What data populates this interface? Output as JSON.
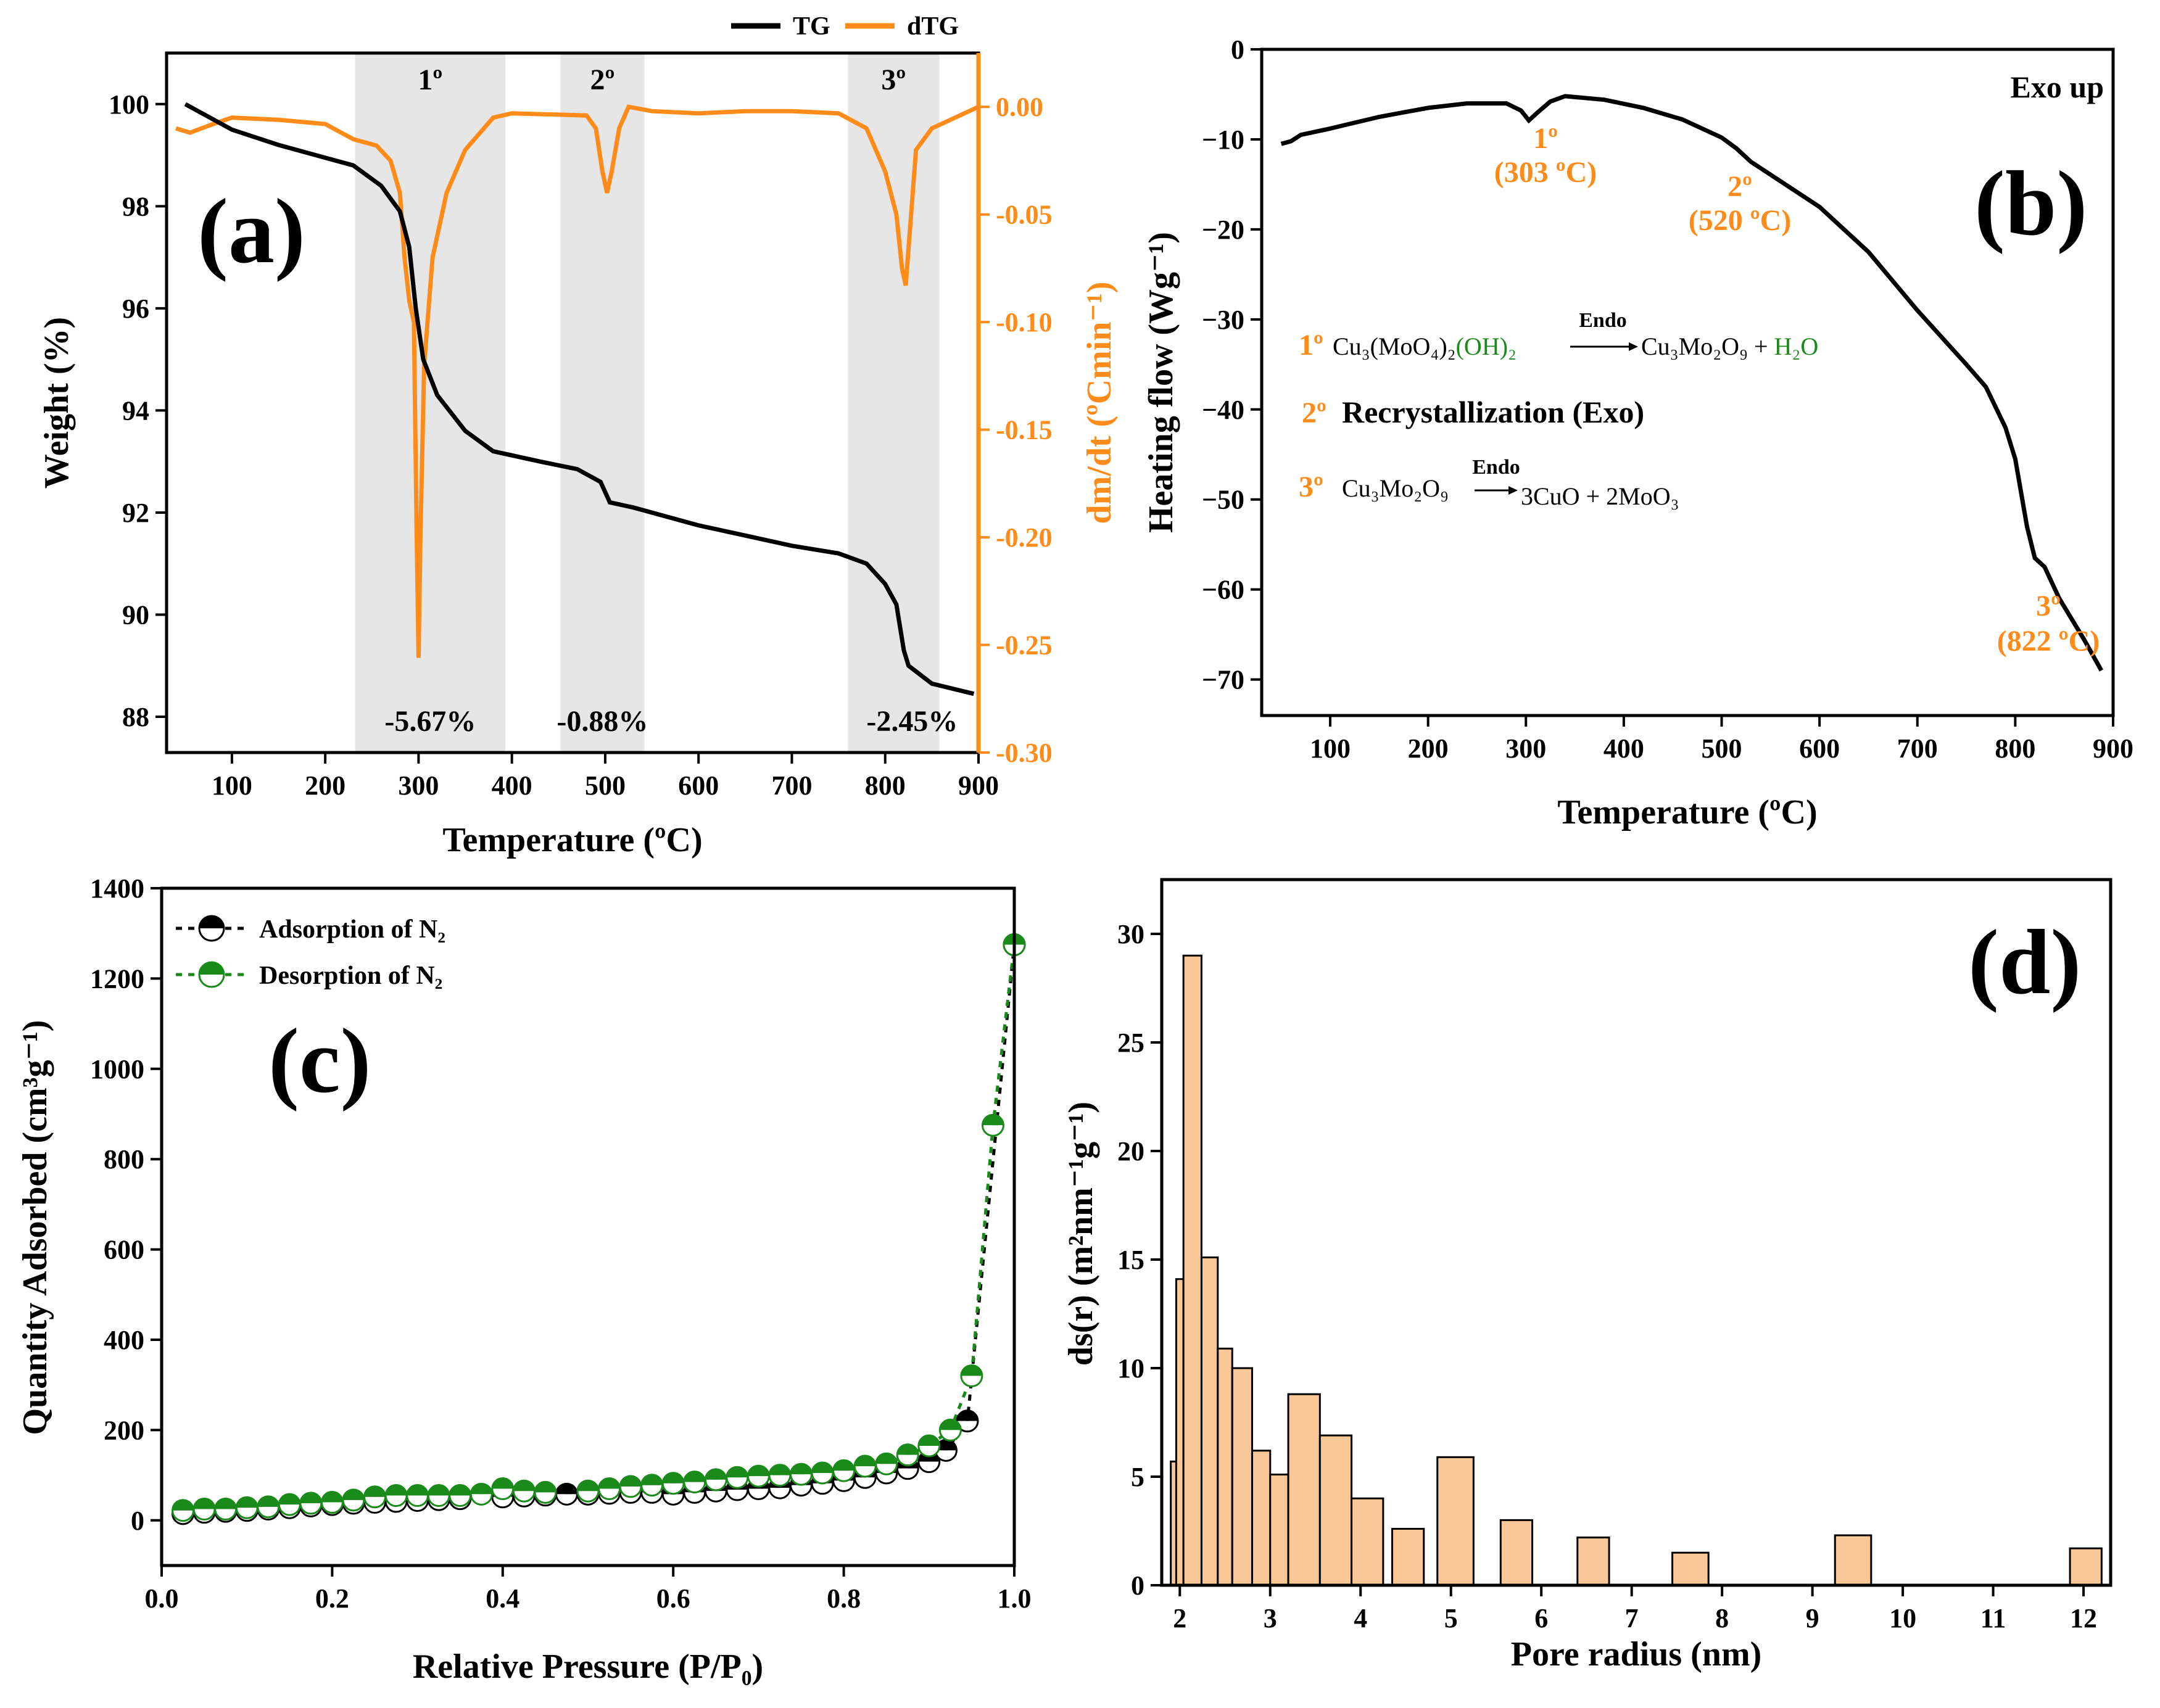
{
  "colors": {
    "tg": "#000000",
    "dtg": "#ff8c1a",
    "shade": "#e6e6e6",
    "adsorption": "#000000",
    "desorption": "#1a8a1a",
    "bar_fill": "#f9c896",
    "green": "#1a8a1a"
  },
  "chart_data": [
    {
      "panel_id": "(a)",
      "type": "line",
      "legend": [
        "TG",
        "dTG"
      ],
      "xlabel": "Temperature (ºC)",
      "ylabel": "Weight (%)",
      "ylabel_right": "dm/dt (ºCmin⁻¹)",
      "xlim": [
        30,
        900
      ],
      "ylim": [
        87.3,
        101
      ],
      "yright_lim": [
        -0.3,
        0.025
      ],
      "xticks": [
        "100",
        "200",
        "300",
        "400",
        "500",
        "600",
        "700",
        "800",
        "900"
      ],
      "yticks": [
        "88",
        "90",
        "92",
        "94",
        "96",
        "98",
        "100"
      ],
      "yright_ticks": [
        "0.00",
        "-0.05",
        "-0.10",
        "-0.15",
        "-0.20",
        "-0.25",
        "-0.30"
      ],
      "regions": [
        {
          "label": "1º",
          "from": 232,
          "to": 393,
          "loss": "-5.67%"
        },
        {
          "label": "2º",
          "from": 452,
          "to": 542,
          "loss": "-0.88%"
        },
        {
          "label": "3º",
          "from": 760,
          "to": 858,
          "loss": "-2.45%"
        }
      ],
      "series": [
        {
          "name": "TG",
          "axis": "left",
          "points": [
            [
              50,
              100
            ],
            [
              100,
              99.5
            ],
            [
              150,
              99.2
            ],
            [
              200,
              98.95
            ],
            [
              230,
              98.8
            ],
            [
              260,
              98.4
            ],
            [
              280,
              97.9
            ],
            [
              290,
              97.2
            ],
            [
              297,
              96.0
            ],
            [
              305,
              95.0
            ],
            [
              320,
              94.3
            ],
            [
              350,
              93.6
            ],
            [
              380,
              93.2
            ],
            [
              430,
              93.0
            ],
            [
              470,
              92.85
            ],
            [
              495,
              92.6
            ],
            [
              505,
              92.2
            ],
            [
              530,
              92.1
            ],
            [
              600,
              91.75
            ],
            [
              650,
              91.55
            ],
            [
              700,
              91.35
            ],
            [
              750,
              91.2
            ],
            [
              780,
              91.0
            ],
            [
              800,
              90.6
            ],
            [
              812,
              90.2
            ],
            [
              820,
              89.3
            ],
            [
              825,
              89.0
            ],
            [
              850,
              88.65
            ],
            [
              895,
              88.45
            ]
          ]
        },
        {
          "name": "dTG",
          "axis": "right",
          "points": [
            [
              40,
              -0.01
            ],
            [
              55,
              -0.012
            ],
            [
              80,
              -0.008
            ],
            [
              100,
              -0.005
            ],
            [
              150,
              -0.006
            ],
            [
              200,
              -0.008
            ],
            [
              230,
              -0.015
            ],
            [
              255,
              -0.018
            ],
            [
              270,
              -0.025
            ],
            [
              280,
              -0.04
            ],
            [
              285,
              -0.07
            ],
            [
              290,
              -0.09
            ],
            [
              295,
              -0.1
            ],
            [
              298,
              -0.2
            ],
            [
              300,
              -0.256
            ],
            [
              302,
              -0.2
            ],
            [
              306,
              -0.12
            ],
            [
              315,
              -0.07
            ],
            [
              330,
              -0.04
            ],
            [
              350,
              -0.02
            ],
            [
              380,
              -0.005
            ],
            [
              400,
              -0.003
            ],
            [
              480,
              -0.004
            ],
            [
              490,
              -0.01
            ],
            [
              497,
              -0.03
            ],
            [
              502,
              -0.04
            ],
            [
              507,
              -0.03
            ],
            [
              515,
              -0.01
            ],
            [
              525,
              0.0
            ],
            [
              550,
              -0.002
            ],
            [
              600,
              -0.003
            ],
            [
              650,
              -0.002
            ],
            [
              700,
              -0.002
            ],
            [
              750,
              -0.003
            ],
            [
              780,
              -0.01
            ],
            [
              800,
              -0.03
            ],
            [
              812,
              -0.05
            ],
            [
              818,
              -0.075
            ],
            [
              822,
              -0.083
            ],
            [
              826,
              -0.06
            ],
            [
              833,
              -0.02
            ],
            [
              850,
              -0.01
            ],
            [
              900,
              0.0
            ]
          ]
        }
      ]
    },
    {
      "panel_id": "(b)",
      "type": "line",
      "xlabel": "Temperature (ºC)",
      "ylabel": "Heating flow (Wg⁻¹)",
      "xlim": [
        30,
        900
      ],
      "ylim": [
        -74,
        0
      ],
      "xticks": [
        "100",
        "200",
        "300",
        "400",
        "500",
        "600",
        "700",
        "800",
        "900"
      ],
      "yticks": [
        "0",
        "-10",
        "-20",
        "-30",
        "-40",
        "-50",
        "-60",
        "-70"
      ],
      "corner_label": "Exo up",
      "peaks": [
        {
          "label": "1º",
          "value": "(303 ºC)",
          "x": 303
        },
        {
          "label": "2º",
          "value": "(520 ºC)",
          "x": 520
        },
        {
          "label": "3º",
          "value": "(822 ºC)",
          "x": 822
        }
      ],
      "reactions": {
        "r1": {
          "num": "1º",
          "reactant": "Cu₃(MoO₄)₂",
          "reactant_green": "(OH)₂",
          "arrow": "Endo",
          "product": "Cu₃Mo₂O₉ + ",
          "product_green": "H₂O"
        },
        "r2": {
          "num": "2º",
          "text": "Recrystallization (Exo)"
        },
        "r3": {
          "num": "3º",
          "reactant": "Cu₃Mo₂O₉",
          "arrow": "Endo",
          "product": "3CuO + 2MoO₃"
        }
      },
      "series": [
        {
          "name": "Heating flow",
          "points": [
            [
              50,
              -10.5
            ],
            [
              60,
              -10.2
            ],
            [
              70,
              -9.5
            ],
            [
              100,
              -8.8
            ],
            [
              150,
              -7.5
            ],
            [
              200,
              -6.5
            ],
            [
              240,
              -6.0
            ],
            [
              280,
              -6.0
            ],
            [
              295,
              -6.8
            ],
            [
              303,
              -7.9
            ],
            [
              312,
              -7.0
            ],
            [
              325,
              -5.8
            ],
            [
              340,
              -5.2
            ],
            [
              380,
              -5.6
            ],
            [
              420,
              -6.5
            ],
            [
              460,
              -7.8
            ],
            [
              500,
              -9.8
            ],
            [
              515,
              -11.0
            ],
            [
              530,
              -12.5
            ],
            [
              600,
              -17.5
            ],
            [
              650,
              -22.5
            ],
            [
              700,
              -29.0
            ],
            [
              750,
              -35.0
            ],
            [
              770,
              -37.5
            ],
            [
              790,
              -42.0
            ],
            [
              800,
              -45.5
            ],
            [
              812,
              -53.0
            ],
            [
              820,
              -56.5
            ],
            [
              830,
              -57.5
            ],
            [
              845,
              -61.0
            ],
            [
              870,
              -65.5
            ],
            [
              888,
              -69.0
            ]
          ]
        }
      ]
    },
    {
      "panel_id": "(c)",
      "type": "scatter",
      "xlabel": "Relative Pressure (P/P₀)",
      "ylabel": "Quantity Adsorbed (cm³g⁻¹)",
      "xlim": [
        0,
        1.0
      ],
      "ylim": [
        -100,
        1400
      ],
      "xticks": [
        "0.0",
        "0.2",
        "0.4",
        "0.6",
        "0.8",
        "1.0"
      ],
      "yticks": [
        "0",
        "200",
        "400",
        "600",
        "800",
        "1000",
        "1200",
        "1400"
      ],
      "series": [
        {
          "name": "Adsorption of N₂",
          "points": [
            [
              0.025,
              15
            ],
            [
              0.05,
              18
            ],
            [
              0.075,
              20
            ],
            [
              0.1,
              22
            ],
            [
              0.125,
              25
            ],
            [
              0.15,
              28
            ],
            [
              0.175,
              32
            ],
            [
              0.2,
              35
            ],
            [
              0.225,
              38
            ],
            [
              0.25,
              40
            ],
            [
              0.275,
              42
            ],
            [
              0.3,
              44
            ],
            [
              0.325,
              46
            ],
            [
              0.35,
              48
            ],
            [
              0.4,
              52
            ],
            [
              0.425,
              54
            ],
            [
              0.45,
              56
            ],
            [
              0.475,
              58
            ],
            [
              0.5,
              58
            ],
            [
              0.525,
              60
            ],
            [
              0.55,
              62
            ],
            [
              0.575,
              62
            ],
            [
              0.6,
              58
            ],
            [
              0.625,
              62
            ],
            [
              0.65,
              65
            ],
            [
              0.675,
              68
            ],
            [
              0.7,
              70
            ],
            [
              0.725,
              72
            ],
            [
              0.75,
              78
            ],
            [
              0.775,
              82
            ],
            [
              0.8,
              88
            ],
            [
              0.825,
              95
            ],
            [
              0.85,
              105
            ],
            [
              0.875,
              115
            ],
            [
              0.9,
              130
            ],
            [
              0.92,
              155
            ],
            [
              0.945,
              220
            ],
            [
              1.0,
              1275
            ]
          ]
        },
        {
          "name": "Desorption of N₂",
          "points": [
            [
              0.025,
              22
            ],
            [
              0.05,
              25
            ],
            [
              0.075,
              25
            ],
            [
              0.1,
              28
            ],
            [
              0.125,
              30
            ],
            [
              0.15,
              35
            ],
            [
              0.175,
              38
            ],
            [
              0.2,
              40
            ],
            [
              0.225,
              45
            ],
            [
              0.25,
              52
            ],
            [
              0.275,
              55
            ],
            [
              0.3,
              55
            ],
            [
              0.325,
              55
            ],
            [
              0.35,
              55
            ],
            [
              0.375,
              58
            ],
            [
              0.4,
              70
            ],
            [
              0.425,
              65
            ],
            [
              0.45,
              62
            ],
            [
              0.5,
              65
            ],
            [
              0.525,
              70
            ],
            [
              0.55,
              75
            ],
            [
              0.575,
              78
            ],
            [
              0.6,
              82
            ],
            [
              0.625,
              85
            ],
            [
              0.65,
              90
            ],
            [
              0.675,
              95
            ],
            [
              0.7,
              98
            ],
            [
              0.725,
              100
            ],
            [
              0.75,
              102
            ],
            [
              0.775,
              105
            ],
            [
              0.8,
              110
            ],
            [
              0.825,
              120
            ],
            [
              0.85,
              125
            ],
            [
              0.875,
              145
            ],
            [
              0.9,
              165
            ],
            [
              0.925,
              200
            ],
            [
              0.95,
              320
            ],
            [
              0.975,
              875
            ],
            [
              1.0,
              1275
            ]
          ]
        }
      ]
    },
    {
      "panel_id": "(d)",
      "type": "bar",
      "xlabel": "Pore radius (nm)",
      "ylabel": "ds(r) (m²nm⁻¹g⁻¹)",
      "xlim": [
        1.8,
        12.3
      ],
      "ylim": [
        0,
        32.5
      ],
      "xticks": [
        "2",
        "3",
        "4",
        "5",
        "6",
        "7",
        "8",
        "9",
        "10",
        "11",
        "12"
      ],
      "yticks": [
        "0",
        "5",
        "10",
        "15",
        "20",
        "25",
        "30"
      ],
      "bars": [
        {
          "x0": 1.9,
          "x1": 1.96,
          "value": 5.7
        },
        {
          "x0": 1.96,
          "x1": 2.04,
          "value": 14.1
        },
        {
          "x0": 2.04,
          "x1": 2.24,
          "value": 29.0
        },
        {
          "x0": 2.24,
          "x1": 2.42,
          "value": 15.1
        },
        {
          "x0": 2.42,
          "x1": 2.58,
          "value": 10.9
        },
        {
          "x0": 2.58,
          "x1": 2.8,
          "value": 10.0
        },
        {
          "x0": 2.8,
          "x1": 3.0,
          "value": 6.2
        },
        {
          "x0": 3.0,
          "x1": 3.2,
          "value": 5.1
        },
        {
          "x0": 3.2,
          "x1": 3.55,
          "value": 8.8
        },
        {
          "x0": 3.55,
          "x1": 3.9,
          "value": 6.9
        },
        {
          "x0": 3.9,
          "x1": 4.25,
          "value": 4.0
        },
        {
          "x0": 4.35,
          "x1": 4.7,
          "value": 2.6
        },
        {
          "x0": 4.85,
          "x1": 5.25,
          "value": 5.9
        },
        {
          "x0": 5.55,
          "x1": 5.9,
          "value": 3.0
        },
        {
          "x0": 6.4,
          "x1": 6.75,
          "value": 2.2
        },
        {
          "x0": 7.45,
          "x1": 7.85,
          "value": 1.5
        },
        {
          "x0": 9.25,
          "x1": 9.65,
          "value": 2.3
        },
        {
          "x0": 11.85,
          "x1": 12.2,
          "value": 1.7
        }
      ]
    }
  ]
}
